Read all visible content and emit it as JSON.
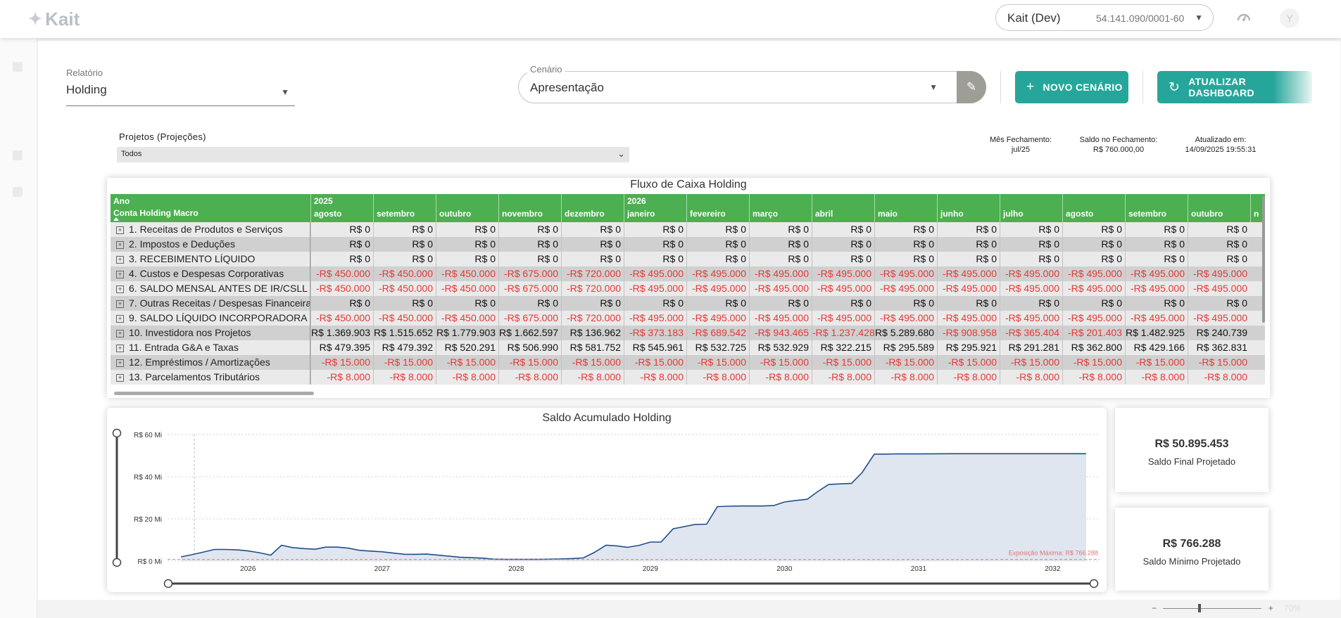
{
  "topbar": {
    "logo_text": "Kait",
    "company_name": "Kait (Dev)",
    "company_cnpj": "54.141.090/0001-60",
    "avatar_letter": "Y"
  },
  "filters": {
    "relatorio_label": "Relatório",
    "relatorio_value": "Holding",
    "cenario_label": "Cenário",
    "cenario_value": "Apresentação",
    "novo_cenario": "NOVO CENÁRIO",
    "atualizar_dashboard": "ATUALIZAR DASHBOARD",
    "projetos_label": "Projetos (Projeções)",
    "projetos_value": "Todos"
  },
  "kpis": {
    "mes_fechamento_label": "Mês Fechamento:",
    "mes_fechamento_value": "jul/25",
    "saldo_fechamento_label": "Saldo no Fechamento:",
    "saldo_fechamento_value": "R$ 760.000,00",
    "atualizado_label": "Atualizado em:",
    "atualizado_value": "14/09/2025 19:55:31",
    "saldo_final_value": "R$ 50.895.453",
    "saldo_final_label": "Saldo Final Projetado",
    "saldo_minimo_value": "R$ 766.288",
    "saldo_minimo_label": "Saldo Mínimo Projetado"
  },
  "table": {
    "title": "Fluxo de Caixa Holding",
    "header_ano": "Ano",
    "header_conta": "Conta Holding Macro",
    "year_2025": "2025",
    "year_2026": "2026",
    "months": [
      "agosto",
      "setembro",
      "outubro",
      "novembro",
      "dezembro",
      "janeiro",
      "fevereiro",
      "março",
      "abril",
      "maio",
      "junho",
      "julho",
      "agosto",
      "setembro",
      "outubro"
    ],
    "months_partial": "n",
    "rows": [
      {
        "label": "1. Receitas de Produtos e Serviços",
        "values": [
          "R$ 0",
          "R$ 0",
          "R$ 0",
          "R$ 0",
          "R$ 0",
          "R$ 0",
          "R$ 0",
          "R$ 0",
          "R$ 0",
          "R$ 0",
          "R$ 0",
          "R$ 0",
          "R$ 0",
          "R$ 0",
          "R$ 0"
        ]
      },
      {
        "label": "2. Impostos e Deduções",
        "values": [
          "R$ 0",
          "R$ 0",
          "R$ 0",
          "R$ 0",
          "R$ 0",
          "R$ 0",
          "R$ 0",
          "R$ 0",
          "R$ 0",
          "R$ 0",
          "R$ 0",
          "R$ 0",
          "R$ 0",
          "R$ 0",
          "R$ 0"
        ]
      },
      {
        "label": "3. RECEBIMENTO LÍQUIDO",
        "values": [
          "R$ 0",
          "R$ 0",
          "R$ 0",
          "R$ 0",
          "R$ 0",
          "R$ 0",
          "R$ 0",
          "R$ 0",
          "R$ 0",
          "R$ 0",
          "R$ 0",
          "R$ 0",
          "R$ 0",
          "R$ 0",
          "R$ 0"
        ]
      },
      {
        "label": "4. Custos e Despesas Corporativas",
        "values": [
          "-R$ 450.000",
          "-R$ 450.000",
          "-R$ 450.000",
          "-R$ 675.000",
          "-R$ 720.000",
          "-R$ 495.000",
          "-R$ 495.000",
          "-R$ 495.000",
          "-R$ 495.000",
          "-R$ 495.000",
          "-R$ 495.000",
          "-R$ 495.000",
          "-R$ 495.000",
          "-R$ 495.000",
          "-R$ 495.000"
        ]
      },
      {
        "label": "6. SALDO MENSAL ANTES DE IR/CSLL",
        "values": [
          "-R$ 450.000",
          "-R$ 450.000",
          "-R$ 450.000",
          "-R$ 675.000",
          "-R$ 720.000",
          "-R$ 495.000",
          "-R$ 495.000",
          "-R$ 495.000",
          "-R$ 495.000",
          "-R$ 495.000",
          "-R$ 495.000",
          "-R$ 495.000",
          "-R$ 495.000",
          "-R$ 495.000",
          "-R$ 495.000"
        ]
      },
      {
        "label": "7. Outras Receitas / Despesas Financeiras",
        "values": [
          "R$ 0",
          "R$ 0",
          "R$ 0",
          "R$ 0",
          "R$ 0",
          "R$ 0",
          "R$ 0",
          "R$ 0",
          "R$ 0",
          "R$ 0",
          "R$ 0",
          "R$ 0",
          "R$ 0",
          "R$ 0",
          "R$ 0"
        ]
      },
      {
        "label": "9. SALDO LÍQUIDO INCORPORADORA",
        "values": [
          "-R$ 450.000",
          "-R$ 450.000",
          "-R$ 450.000",
          "-R$ 675.000",
          "-R$ 720.000",
          "-R$ 495.000",
          "-R$ 495.000",
          "-R$ 495.000",
          "-R$ 495.000",
          "-R$ 495.000",
          "-R$ 495.000",
          "-R$ 495.000",
          "-R$ 495.000",
          "-R$ 495.000",
          "-R$ 495.000"
        ]
      },
      {
        "label": "10. Investidora nos Projetos",
        "values": [
          "R$ 1.369.903",
          "R$ 1.515.652",
          "R$ 1.779.903",
          "R$ 1.662.597",
          "R$ 136.962",
          "-R$ 373.183",
          "-R$ 689.542",
          "-R$ 943.465",
          "-R$ 1.237.428",
          "R$ 5.289.680",
          "-R$ 908.958",
          "-R$ 365.404",
          "-R$ 201.403",
          "R$ 1.482.925",
          "R$ 240.739"
        ]
      },
      {
        "label": "11. Entrada G&A e Taxas",
        "values": [
          "R$ 479.395",
          "R$ 479.392",
          "R$ 520.291",
          "R$ 506.990",
          "R$ 581.752",
          "R$ 545.961",
          "R$ 532.725",
          "R$ 532.929",
          "R$ 322.215",
          "R$ 295.589",
          "R$ 295.921",
          "R$ 291.281",
          "R$ 362.800",
          "R$ 429.166",
          "R$ 362.831"
        ]
      },
      {
        "label": "12. Empréstimos / Amortizações",
        "values": [
          "-R$ 15.000",
          "-R$ 15.000",
          "-R$ 15.000",
          "-R$ 15.000",
          "-R$ 15.000",
          "-R$ 15.000",
          "-R$ 15.000",
          "-R$ 15.000",
          "-R$ 15.000",
          "-R$ 15.000",
          "-R$ 15.000",
          "-R$ 15.000",
          "-R$ 15.000",
          "-R$ 15.000",
          "-R$ 15.000"
        ]
      },
      {
        "label": "13. Parcelamentos Tributários",
        "values": [
          "-R$ 8.000",
          "-R$ 8.000",
          "-R$ 8.000",
          "-R$ 8.000",
          "-R$ 8.000",
          "-R$ 8.000",
          "-R$ 8.000",
          "-R$ 8.000",
          "-R$ 8.000",
          "-R$ 8.000",
          "-R$ 8.000",
          "-R$ 8.000",
          "-R$ 8.000",
          "-R$ 8.000",
          "-R$ 8.000"
        ]
      }
    ]
  },
  "chart_data": {
    "type": "area",
    "title": "Saldo Acumulado Holding",
    "xlabel": "",
    "ylabel": "",
    "y_ticks": [
      "R$ 0 Mi",
      "R$ 20 Mi",
      "R$ 40 Mi",
      "R$ 60 Mi"
    ],
    "y_tick_values": [
      0,
      20,
      40,
      60
    ],
    "ylim": [
      0,
      60
    ],
    "xlim": [
      2025.4,
      2032.35
    ],
    "x_ticks": [
      "2026",
      "2027",
      "2028",
      "2029",
      "2030",
      "2031",
      "2032"
    ],
    "x_tick_values": [
      2026,
      2027,
      2028,
      2029,
      2030,
      2031,
      2032
    ],
    "annotation": "Exposição Máxima: R$ 766.288",
    "annotation_value_mi": 0.766,
    "grid": true,
    "series": [
      {
        "x": [
          2025.5,
          2025.58,
          2025.67,
          2025.75,
          2025.83,
          2025.92,
          2026.0,
          2026.08,
          2026.17,
          2026.25,
          2026.33,
          2026.42,
          2026.5,
          2026.58,
          2026.67,
          2026.75,
          2026.83,
          2026.92,
          2027.0,
          2027.08,
          2027.17,
          2027.25,
          2027.33,
          2027.42,
          2027.5,
          2027.58,
          2027.67,
          2027.75,
          2027.83,
          2027.92,
          2028.0,
          2028.08,
          2028.17,
          2028.25,
          2028.33,
          2028.42,
          2028.5,
          2028.58,
          2028.67,
          2028.75,
          2028.83,
          2028.92,
          2029.0,
          2029.08,
          2029.17,
          2029.25,
          2029.33,
          2029.42,
          2029.5,
          2029.58,
          2029.67,
          2029.75,
          2029.83,
          2029.92,
          2030.0,
          2030.08,
          2030.17,
          2030.25,
          2030.33,
          2030.42,
          2030.5,
          2030.58,
          2030.67,
          2030.75,
          2030.83,
          2030.92,
          2031.0,
          2031.25,
          2031.5,
          2031.75,
          2032.0,
          2032.25
        ],
        "values": [
          2.0,
          3.0,
          4.3,
          5.5,
          5.5,
          5.3,
          4.8,
          4.0,
          2.8,
          7.5,
          6.4,
          5.9,
          5.6,
          6.6,
          6.6,
          6.1,
          5.1,
          4.7,
          4.4,
          3.8,
          3.2,
          3.2,
          3.3,
          2.8,
          2.3,
          1.8,
          1.6,
          1.4,
          0.9,
          0.8,
          0.8,
          0.8,
          0.8,
          0.9,
          1.0,
          1.2,
          1.5,
          4.0,
          7.5,
          7.2,
          6.5,
          7.5,
          9.0,
          9.0,
          15.3,
          16.3,
          17.3,
          17.5,
          25.8,
          26.0,
          26.1,
          26.1,
          26.1,
          26.3,
          28.0,
          28.7,
          29.3,
          33.0,
          36.3,
          36.6,
          36.8,
          42.0,
          50.7,
          50.7,
          50.8,
          50.8,
          50.8,
          50.9,
          50.9,
          50.9,
          50.9,
          50.9
        ]
      }
    ]
  },
  "zoom": {
    "level": "70%"
  }
}
